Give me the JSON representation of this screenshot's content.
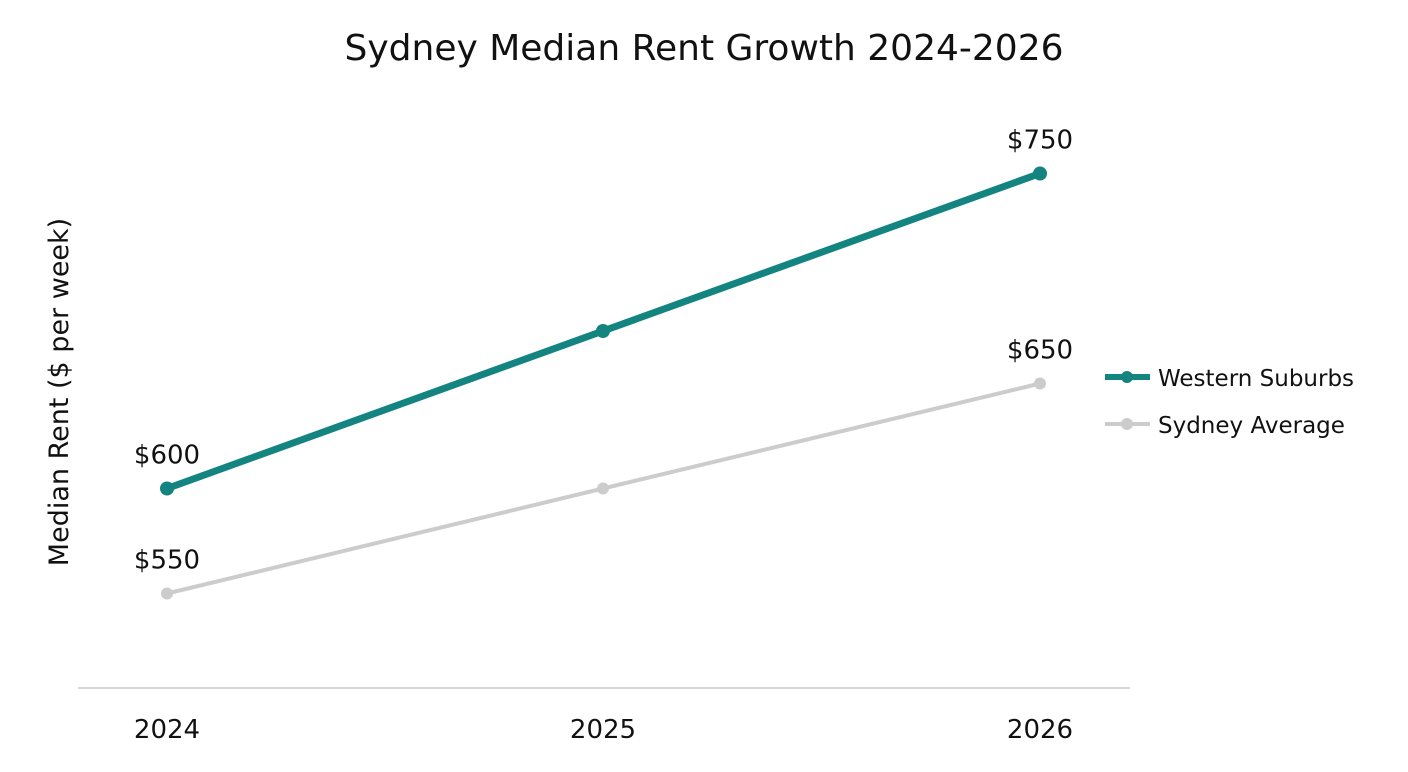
{
  "chart_data": {
    "type": "line",
    "title": "Sydney Median Rent Growth 2024-2026",
    "xlabel": "",
    "ylabel": "Median Rent ($ per week)",
    "categories": [
      "2024",
      "2025",
      "2026"
    ],
    "ylim": [
      505,
      785
    ],
    "grid": false,
    "legend_position": "right",
    "series": [
      {
        "name": "Western Suburbs",
        "values": [
          600,
          675,
          750
        ],
        "color": "#138480",
        "data_labels": [
          "$600",
          "",
          "$750"
        ]
      },
      {
        "name": "Sydney Average",
        "values": [
          550,
          600,
          650
        ],
        "color": "#cccccc",
        "data_labels": [
          "$550",
          "",
          "$650"
        ]
      }
    ]
  }
}
